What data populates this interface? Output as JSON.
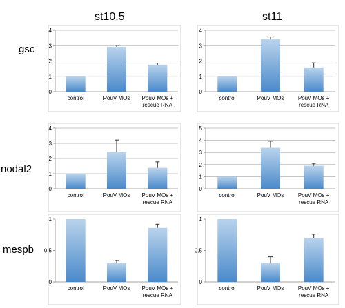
{
  "column_titles": [
    "st10.5",
    "st11"
  ],
  "row_labels": [
    "gsc",
    "nodal2",
    "mespb"
  ],
  "colors": {
    "bar_top": "#b9d3ec",
    "bar_bottom": "#4a8acb",
    "axis": "#888888",
    "grid": "#b0b0b0",
    "error": "#333333"
  },
  "chart_data": [
    {
      "type": "bar",
      "row": "gsc",
      "column": "st10.5",
      "categories": [
        "control",
        "PouV MOs",
        "PouV MOs + rescue RNA"
      ],
      "values": [
        1,
        2.92,
        1.76
      ],
      "errors": [
        0,
        0.1,
        0.1
      ],
      "ylim": [
        0,
        4
      ],
      "yticks": [
        0,
        1,
        2,
        3,
        4
      ],
      "ytick_labels": [
        "0",
        "1",
        "2",
        "3",
        "4"
      ],
      "grid": true
    },
    {
      "type": "bar",
      "row": "gsc",
      "column": "st11",
      "categories": [
        "control",
        "PouV MOs",
        "PouV MOs + rescue RNA"
      ],
      "values": [
        1,
        3.42,
        1.58
      ],
      "errors": [
        0,
        0.15,
        0.3
      ],
      "ylim": [
        0,
        4
      ],
      "yticks": [
        0,
        1,
        2,
        3,
        4
      ],
      "ytick_labels": [
        "0",
        "1",
        "2",
        "3",
        "4"
      ],
      "grid": true
    },
    {
      "type": "bar",
      "row": "nodal2",
      "column": "st10.5",
      "categories": [
        "control",
        "PouV MOs",
        "PouV MOs + rescue RNA"
      ],
      "values": [
        1,
        2.42,
        1.38
      ],
      "errors": [
        0,
        0.8,
        0.4
      ],
      "ylim": [
        0,
        4
      ],
      "yticks": [
        0,
        1,
        2,
        3,
        4
      ],
      "ytick_labels": [
        "0",
        "1",
        "2",
        "3",
        "4"
      ],
      "grid": true
    },
    {
      "type": "bar",
      "row": "nodal2",
      "column": "st11",
      "categories": [
        "control",
        "PouV MOs",
        "PouV MOs + rescue RNA"
      ],
      "values": [
        1,
        3.38,
        1.9
      ],
      "errors": [
        0,
        0.55,
        0.2
      ],
      "ylim": [
        0,
        5
      ],
      "yticks": [
        0,
        1,
        2,
        3,
        4,
        5
      ],
      "ytick_labels": [
        "0",
        "1",
        "2",
        "3",
        "4",
        "5"
      ],
      "grid": true
    },
    {
      "type": "bar",
      "row": "mespb",
      "column": "st10.5",
      "categories": [
        "control",
        "PouV MOs",
        "PouV MOs + rescue RNA"
      ],
      "values": [
        1,
        0.3,
        0.86
      ],
      "errors": [
        0,
        0.04,
        0.06
      ],
      "ylim": [
        0,
        1
      ],
      "yticks": [
        0,
        0.5,
        1
      ],
      "ytick_labels": [
        "0",
        "0.5",
        "1"
      ],
      "grid": false
    },
    {
      "type": "bar",
      "row": "mespb",
      "column": "st11",
      "categories": [
        "control",
        "PouV MOs",
        "PouV MOs + rescue RNA"
      ],
      "values": [
        1,
        0.3,
        0.7
      ],
      "errors": [
        0,
        0.1,
        0.06
      ],
      "ylim": [
        0,
        1
      ],
      "yticks": [
        0,
        0.5,
        1
      ],
      "ytick_labels": [
        "0",
        "0.5",
        "1"
      ],
      "grid": false
    }
  ]
}
